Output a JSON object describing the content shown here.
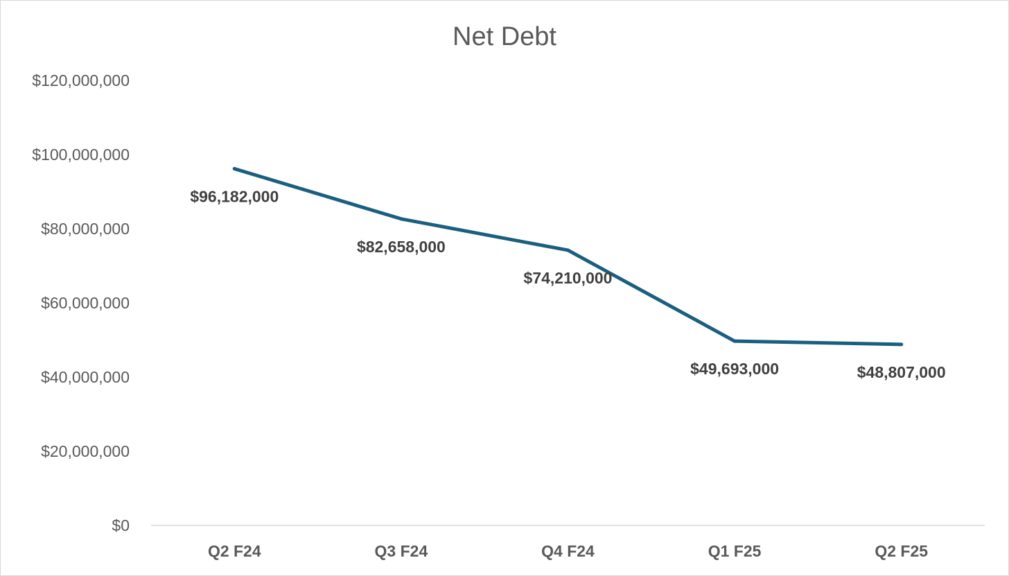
{
  "chart_data": {
    "type": "line",
    "title": "Net Debt",
    "xlabel": "",
    "ylabel": "",
    "categories": [
      "Q2 F24",
      "Q3 F24",
      "Q4 F24",
      "Q1 F25",
      "Q2 F25"
    ],
    "series": [
      {
        "values": [
          96182000,
          82658000,
          74210000,
          49693000,
          48807000
        ],
        "color": "#1b5f80",
        "data_labels": [
          "$96,182,000",
          "$82,658,000",
          "$74,210,000",
          "$49,693,000",
          "$48,807,000"
        ]
      }
    ],
    "ylim": [
      0,
      120000000
    ],
    "y_ticks": [
      0,
      20000000,
      40000000,
      60000000,
      80000000,
      100000000,
      120000000
    ],
    "y_tick_labels": [
      "$0",
      "$20,000,000",
      "$40,000,000",
      "$60,000,000",
      "$80,000,000",
      "$100,000,000",
      "$120,000,000"
    ],
    "grid": false,
    "legend": "none"
  }
}
